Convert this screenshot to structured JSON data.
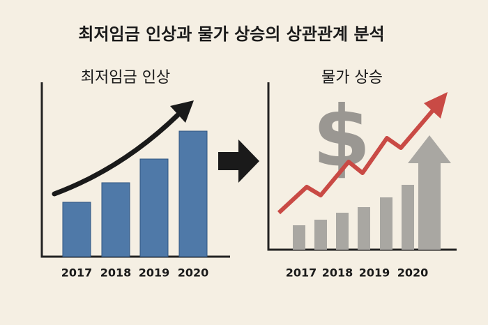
{
  "title": "최저임금 인상과 물가 상승의 상관관계 분석",
  "chart_data": [
    {
      "type": "bar",
      "title": "최저임금 인상",
      "categories": [
        "2017",
        "2018",
        "2019",
        "2020"
      ],
      "values": [
        78,
        106,
        140,
        180
      ],
      "color": "#4f79a8",
      "ylim": [
        0,
        250
      ]
    },
    {
      "type": "bar",
      "title": "물가 상승",
      "categories": [
        "2017",
        "2018",
        "2019",
        "2020"
      ]
    }
  ]
}
